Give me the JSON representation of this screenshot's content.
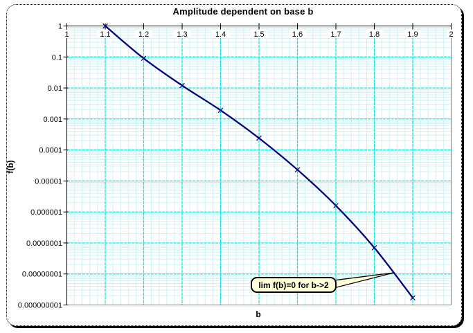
{
  "chart_data": {
    "type": "line",
    "title": "Amplitude dependent on base b",
    "xlabel": "b",
    "ylabel": "f(b)",
    "x": [
      1.1,
      1.2,
      1.3,
      1.4,
      1.5,
      1.6,
      1.7,
      1.8,
      1.9
    ],
    "values": [
      1,
      0.09,
      0.012,
      0.0019,
      0.00024,
      2.3e-05,
      1.6e-06,
      7e-08,
      1.7e-09
    ],
    "xlim": [
      1,
      2
    ],
    "ylim": [
      1e-09,
      1
    ],
    "y_scale": "log",
    "grid": true,
    "legend": "none",
    "marker": "x",
    "x_ticks": [
      "1",
      "1.1",
      "1.2",
      "1.3",
      "1.4",
      "1.5",
      "1.6",
      "1.7",
      "1.8",
      "1.9",
      "2"
    ],
    "y_ticks": [
      "1",
      "0.1",
      "0.01",
      "0.001",
      "0.0001",
      "0.00001",
      "0.000001",
      "0.0000001",
      "0.00000001",
      "0.000000001"
    ],
    "annotation": {
      "text": "lim f(b)=0 for b->2",
      "target_b": 1.85
    },
    "colors": {
      "line": "#000080",
      "grid_major": "#00E6E6",
      "grid_minor": "#CEF2F2",
      "plot_border": "#808080",
      "axis": "#000000",
      "callout_fill": "#FFFFDA"
    }
  }
}
